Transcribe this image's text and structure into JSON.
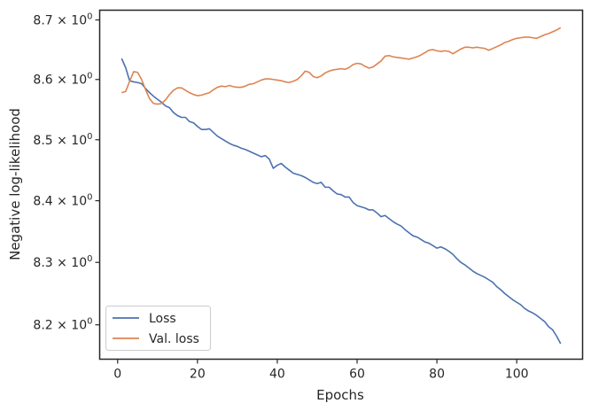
{
  "chart_data": {
    "type": "line",
    "title": "",
    "xlabel": "Epochs",
    "ylabel": "Negative log-likelihood",
    "xlim": [
      -4.5,
      116.5
    ],
    "ylim": [
      8.1455,
      8.7165
    ],
    "yscale": "log",
    "grid": false,
    "legend_position": "lower-left",
    "x_ticks": [
      0,
      20,
      40,
      60,
      80,
      100
    ],
    "x_tick_labels": [
      "0",
      "20",
      "40",
      "60",
      "80",
      "100"
    ],
    "y_ticks": [
      8.2,
      8.3,
      8.4,
      8.5,
      8.6,
      8.7
    ],
    "y_tick_labels": [
      {
        "mantissa": "8.2",
        "exp": "0"
      },
      {
        "mantissa": "8.3",
        "exp": "0"
      },
      {
        "mantissa": "8.4",
        "exp": "0"
      },
      {
        "mantissa": "8.5",
        "exp": "0"
      },
      {
        "mantissa": "8.6",
        "exp": "0"
      },
      {
        "mantissa": "8.7",
        "exp": "0"
      }
    ],
    "x": [
      1,
      2,
      3,
      4,
      5,
      6,
      7,
      8,
      9,
      10,
      11,
      12,
      13,
      14,
      15,
      16,
      17,
      18,
      19,
      20,
      21,
      22,
      23,
      24,
      25,
      26,
      27,
      28,
      29,
      30,
      31,
      32,
      33,
      34,
      35,
      36,
      37,
      38,
      39,
      40,
      41,
      42,
      43,
      44,
      45,
      46,
      47,
      48,
      49,
      50,
      51,
      52,
      53,
      54,
      55,
      56,
      57,
      58,
      59,
      60,
      61,
      62,
      63,
      64,
      65,
      66,
      67,
      68,
      69,
      70,
      71,
      72,
      73,
      74,
      75,
      76,
      77,
      78,
      79,
      80,
      81,
      82,
      83,
      84,
      85,
      86,
      87,
      88,
      89,
      90,
      91,
      92,
      93,
      94,
      95,
      96,
      97,
      98,
      99,
      100,
      101,
      102,
      103,
      104,
      105,
      106,
      107,
      108,
      109,
      110,
      111
    ],
    "series": [
      {
        "name": "Loss",
        "color": "#4c72b0",
        "values": [
          8.635,
          8.62,
          8.598,
          8.596,
          8.595,
          8.593,
          8.585,
          8.578,
          8.572,
          8.567,
          8.562,
          8.556,
          8.553,
          8.545,
          8.54,
          8.537,
          8.537,
          8.53,
          8.528,
          8.522,
          8.517,
          8.517,
          8.518,
          8.512,
          8.506,
          8.502,
          8.498,
          8.494,
          8.491,
          8.489,
          8.486,
          8.484,
          8.481,
          8.478,
          8.475,
          8.472,
          8.474,
          8.468,
          8.453,
          8.458,
          8.461,
          8.455,
          8.45,
          8.445,
          8.443,
          8.441,
          8.438,
          8.434,
          8.43,
          8.428,
          8.43,
          8.422,
          8.422,
          8.416,
          8.411,
          8.41,
          8.406,
          8.406,
          8.397,
          8.392,
          8.39,
          8.388,
          8.385,
          8.385,
          8.38,
          8.374,
          8.376,
          8.371,
          8.366,
          8.362,
          8.359,
          8.353,
          8.348,
          8.343,
          8.341,
          8.337,
          8.333,
          8.331,
          8.327,
          8.323,
          8.325,
          8.322,
          8.318,
          8.313,
          8.306,
          8.3,
          8.296,
          8.291,
          8.286,
          8.282,
          8.279,
          8.276,
          8.272,
          8.268,
          8.261,
          8.256,
          8.25,
          8.245,
          8.24,
          8.236,
          8.232,
          8.226,
          8.222,
          8.219,
          8.215,
          8.21,
          8.205,
          8.197,
          8.192,
          8.182,
          8.17
        ]
      },
      {
        "name": "Val. loss",
        "color": "#dd8452",
        "values": [
          8.578,
          8.58,
          8.597,
          8.613,
          8.612,
          8.6,
          8.583,
          8.568,
          8.56,
          8.559,
          8.56,
          8.566,
          8.575,
          8.582,
          8.586,
          8.586,
          8.582,
          8.578,
          8.575,
          8.573,
          8.574,
          8.576,
          8.578,
          8.583,
          8.587,
          8.589,
          8.588,
          8.59,
          8.588,
          8.587,
          8.587,
          8.589,
          8.592,
          8.593,
          8.596,
          8.599,
          8.601,
          8.601,
          8.6,
          8.599,
          8.598,
          8.596,
          8.595,
          8.597,
          8.6,
          8.606,
          8.614,
          8.612,
          8.605,
          8.603,
          8.606,
          8.611,
          8.614,
          8.616,
          8.617,
          8.618,
          8.617,
          8.62,
          8.625,
          8.627,
          8.626,
          8.622,
          8.619,
          8.621,
          8.626,
          8.631,
          8.639,
          8.64,
          8.638,
          8.637,
          8.636,
          8.635,
          8.634,
          8.636,
          8.638,
          8.641,
          8.645,
          8.649,
          8.65,
          8.648,
          8.647,
          8.648,
          8.647,
          8.643,
          8.647,
          8.651,
          8.654,
          8.654,
          8.653,
          8.654,
          8.653,
          8.652,
          8.649,
          8.652,
          8.655,
          8.658,
          8.662,
          8.664,
          8.667,
          8.669,
          8.67,
          8.671,
          8.671,
          8.67,
          8.669,
          8.672,
          8.675,
          8.677,
          8.68,
          8.683,
          8.687
        ]
      }
    ]
  }
}
